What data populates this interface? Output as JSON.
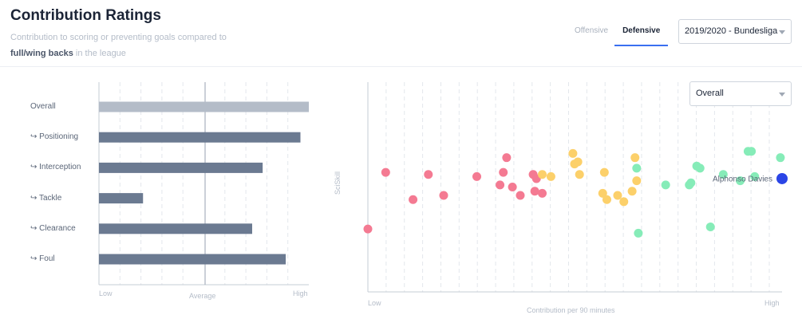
{
  "header": {
    "title": "Contribution Ratings",
    "subtitle_part1": "Contribution to scoring or preventing goals compared to",
    "subtitle_bold": "full/wing backs",
    "subtitle_part2": "in the league"
  },
  "tabs": [
    {
      "label": "Offensive",
      "active": false
    },
    {
      "label": "Defensive",
      "active": true
    }
  ],
  "season_select": {
    "value": "2019/2020 - Bundesliga"
  },
  "overall_select": {
    "value": "Overall"
  },
  "bar_chart": {
    "x_low": "Low",
    "x_mid": "Average",
    "x_high": "High",
    "rows": [
      {
        "label": "Overall",
        "prefix": "",
        "value": 1.0,
        "color": "#b4bcc8"
      },
      {
        "label": "Positioning",
        "prefix": "↪",
        "value": 0.96,
        "color": "#6b7a91"
      },
      {
        "label": "Interception",
        "prefix": "↪",
        "value": 0.78,
        "color": "#6b7a91"
      },
      {
        "label": "Tackle",
        "prefix": "↪",
        "value": 0.21,
        "color": "#6b7a91"
      },
      {
        "label": "Clearance",
        "prefix": "↪",
        "value": 0.73,
        "color": "#6b7a91"
      },
      {
        "label": "Foul",
        "prefix": "↪",
        "value": 0.89,
        "color": "#6b7a91"
      }
    ]
  },
  "chart_data": {
    "type": "scatter",
    "xlabel": "Contribution per 90 minutes",
    "ylabel": "SciSkill",
    "x_low_label": "Low",
    "x_high_label": "High",
    "xlim": [
      0,
      1
    ],
    "ylim": [
      0,
      1
    ],
    "highlight": {
      "name": "Alphonso Davies",
      "x": 1.0,
      "y": 0.54,
      "color": "#2b45e6"
    },
    "colors": {
      "red": "#f47a92",
      "yellow": "#fcd06a",
      "green": "#86ecb8"
    },
    "points": [
      {
        "x": 0.0,
        "y": 0.3,
        "c": "red"
      },
      {
        "x": 0.043,
        "y": 0.57,
        "c": "red"
      },
      {
        "x": 0.109,
        "y": 0.44,
        "c": "red"
      },
      {
        "x": 0.146,
        "y": 0.56,
        "c": "red"
      },
      {
        "x": 0.183,
        "y": 0.46,
        "c": "red"
      },
      {
        "x": 0.263,
        "y": 0.55,
        "c": "red"
      },
      {
        "x": 0.319,
        "y": 0.51,
        "c": "red"
      },
      {
        "x": 0.327,
        "y": 0.57,
        "c": "red"
      },
      {
        "x": 0.335,
        "y": 0.64,
        "c": "red"
      },
      {
        "x": 0.349,
        "y": 0.5,
        "c": "red"
      },
      {
        "x": 0.368,
        "y": 0.46,
        "c": "red"
      },
      {
        "x": 0.399,
        "y": 0.56,
        "c": "red"
      },
      {
        "x": 0.403,
        "y": 0.48,
        "c": "red"
      },
      {
        "x": 0.407,
        "y": 0.54,
        "c": "red"
      },
      {
        "x": 0.421,
        "y": 0.47,
        "c": "red"
      },
      {
        "x": 0.421,
        "y": 0.56,
        "c": "yellow"
      },
      {
        "x": 0.442,
        "y": 0.55,
        "c": "yellow"
      },
      {
        "x": 0.495,
        "y": 0.66,
        "c": "yellow"
      },
      {
        "x": 0.499,
        "y": 0.61,
        "c": "yellow"
      },
      {
        "x": 0.507,
        "y": 0.62,
        "c": "yellow"
      },
      {
        "x": 0.511,
        "y": 0.56,
        "c": "yellow"
      },
      {
        "x": 0.567,
        "y": 0.47,
        "c": "yellow"
      },
      {
        "x": 0.571,
        "y": 0.57,
        "c": "yellow"
      },
      {
        "x": 0.577,
        "y": 0.44,
        "c": "yellow"
      },
      {
        "x": 0.603,
        "y": 0.46,
        "c": "yellow"
      },
      {
        "x": 0.618,
        "y": 0.43,
        "c": "yellow"
      },
      {
        "x": 0.638,
        "y": 0.48,
        "c": "yellow"
      },
      {
        "x": 0.645,
        "y": 0.64,
        "c": "yellow"
      },
      {
        "x": 0.649,
        "y": 0.53,
        "c": "yellow"
      },
      {
        "x": 0.649,
        "y": 0.59,
        "c": "green"
      },
      {
        "x": 0.653,
        "y": 0.28,
        "c": "green"
      },
      {
        "x": 0.719,
        "y": 0.51,
        "c": "green"
      },
      {
        "x": 0.776,
        "y": 0.51,
        "c": "green"
      },
      {
        "x": 0.78,
        "y": 0.52,
        "c": "green"
      },
      {
        "x": 0.794,
        "y": 0.6,
        "c": "green"
      },
      {
        "x": 0.802,
        "y": 0.59,
        "c": "green"
      },
      {
        "x": 0.827,
        "y": 0.31,
        "c": "green"
      },
      {
        "x": 0.858,
        "y": 0.56,
        "c": "green"
      },
      {
        "x": 0.899,
        "y": 0.53,
        "c": "green"
      },
      {
        "x": 0.918,
        "y": 0.67,
        "c": "green"
      },
      {
        "x": 0.926,
        "y": 0.67,
        "c": "green"
      },
      {
        "x": 0.934,
        "y": 0.55,
        "c": "green"
      },
      {
        "x": 0.996,
        "y": 0.64,
        "c": "green"
      }
    ]
  }
}
